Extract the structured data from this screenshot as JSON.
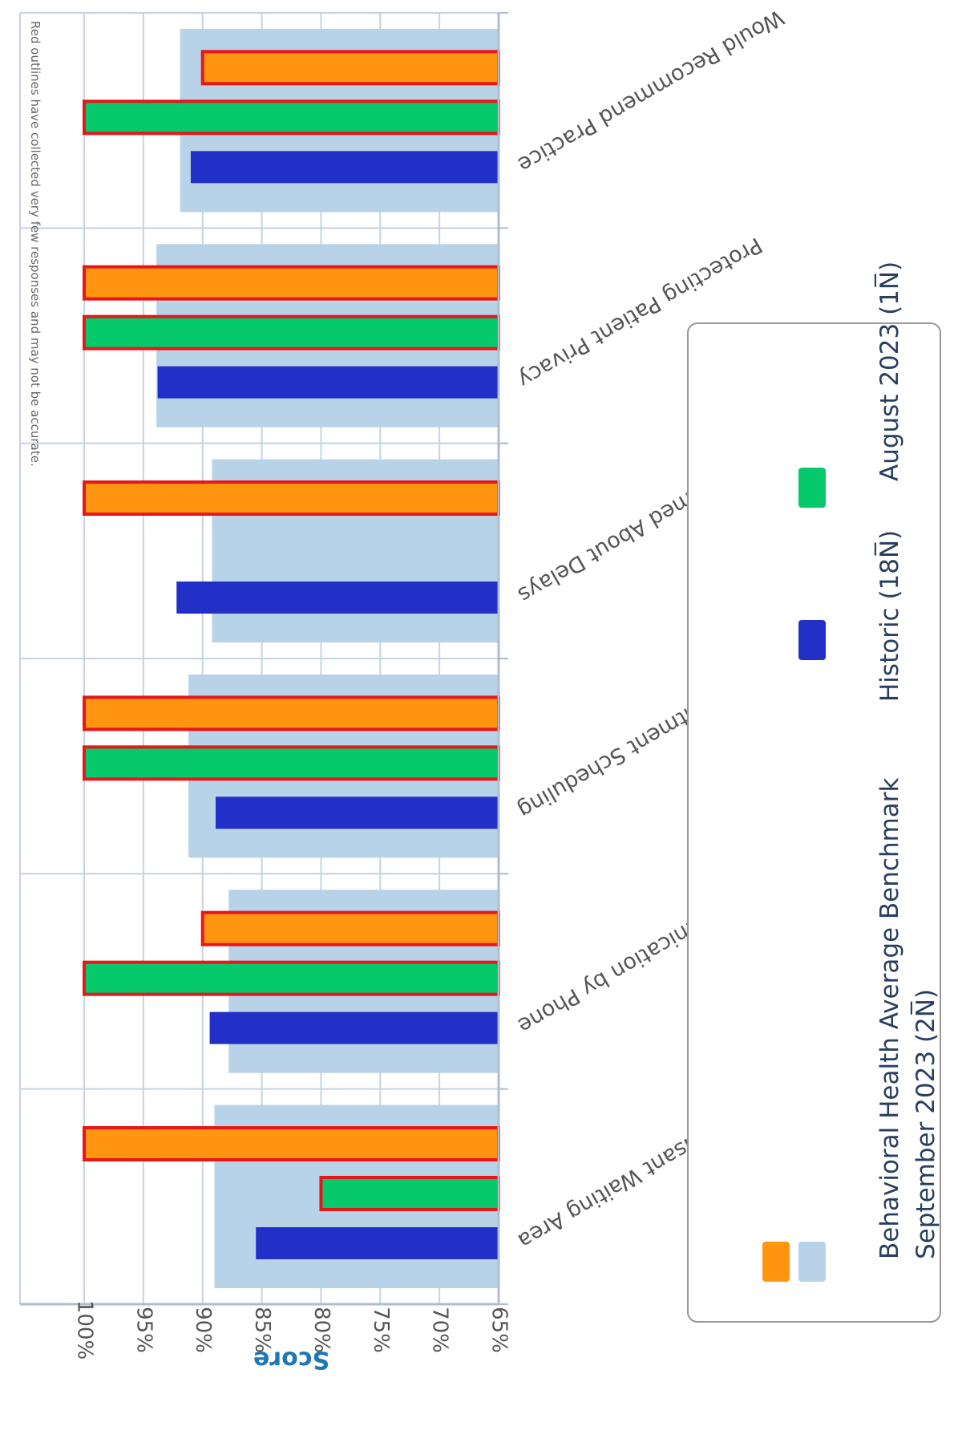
{
  "chart_data": {
    "type": "bar",
    "orientation": "vertical",
    "categories": [
      "Pleasant Waiting Area",
      "Communication by Phone",
      "Easy Appointment Scheduling",
      "Informed About Delays",
      "Protecting Patient Privacy",
      "Would Recommend Practice"
    ],
    "ylabel": "Score",
    "ylim": [
      65,
      100
    ],
    "y_ticks": [
      65,
      70,
      75,
      80,
      85,
      90,
      95,
      100
    ],
    "y_tick_format": "%",
    "grid": true,
    "legend_position": "bottom",
    "note": "Red outlines have collected very few responses and may not be accurate.",
    "benchmark": {
      "name": "Behavioral Health Average Benchmark",
      "color": "#b8d2e8",
      "values": [
        89.0,
        87.8,
        91.2,
        89.2,
        93.9,
        91.9
      ]
    },
    "series": [
      {
        "name": "Historic (18N̅)",
        "color": "#2330c8",
        "values": [
          85.5,
          89.4,
          88.9,
          92.2,
          93.8,
          91.0
        ],
        "red_outline": [
          false,
          false,
          false,
          false,
          false,
          false
        ]
      },
      {
        "name": "August 2023 (1N̅)",
        "color": "#06c96c",
        "values": [
          80.0,
          100.0,
          100.0,
          null,
          100.0,
          100.0
        ],
        "red_outline": [
          true,
          true,
          true,
          false,
          true,
          true
        ]
      },
      {
        "name": "September 2023 (2N̅)",
        "color": "#ff9510",
        "values": [
          100.0,
          90.0,
          100.0,
          100.0,
          100.0,
          90.0
        ],
        "red_outline": [
          true,
          true,
          true,
          true,
          true,
          true
        ]
      }
    ],
    "outline_color": "#e8151b"
  }
}
